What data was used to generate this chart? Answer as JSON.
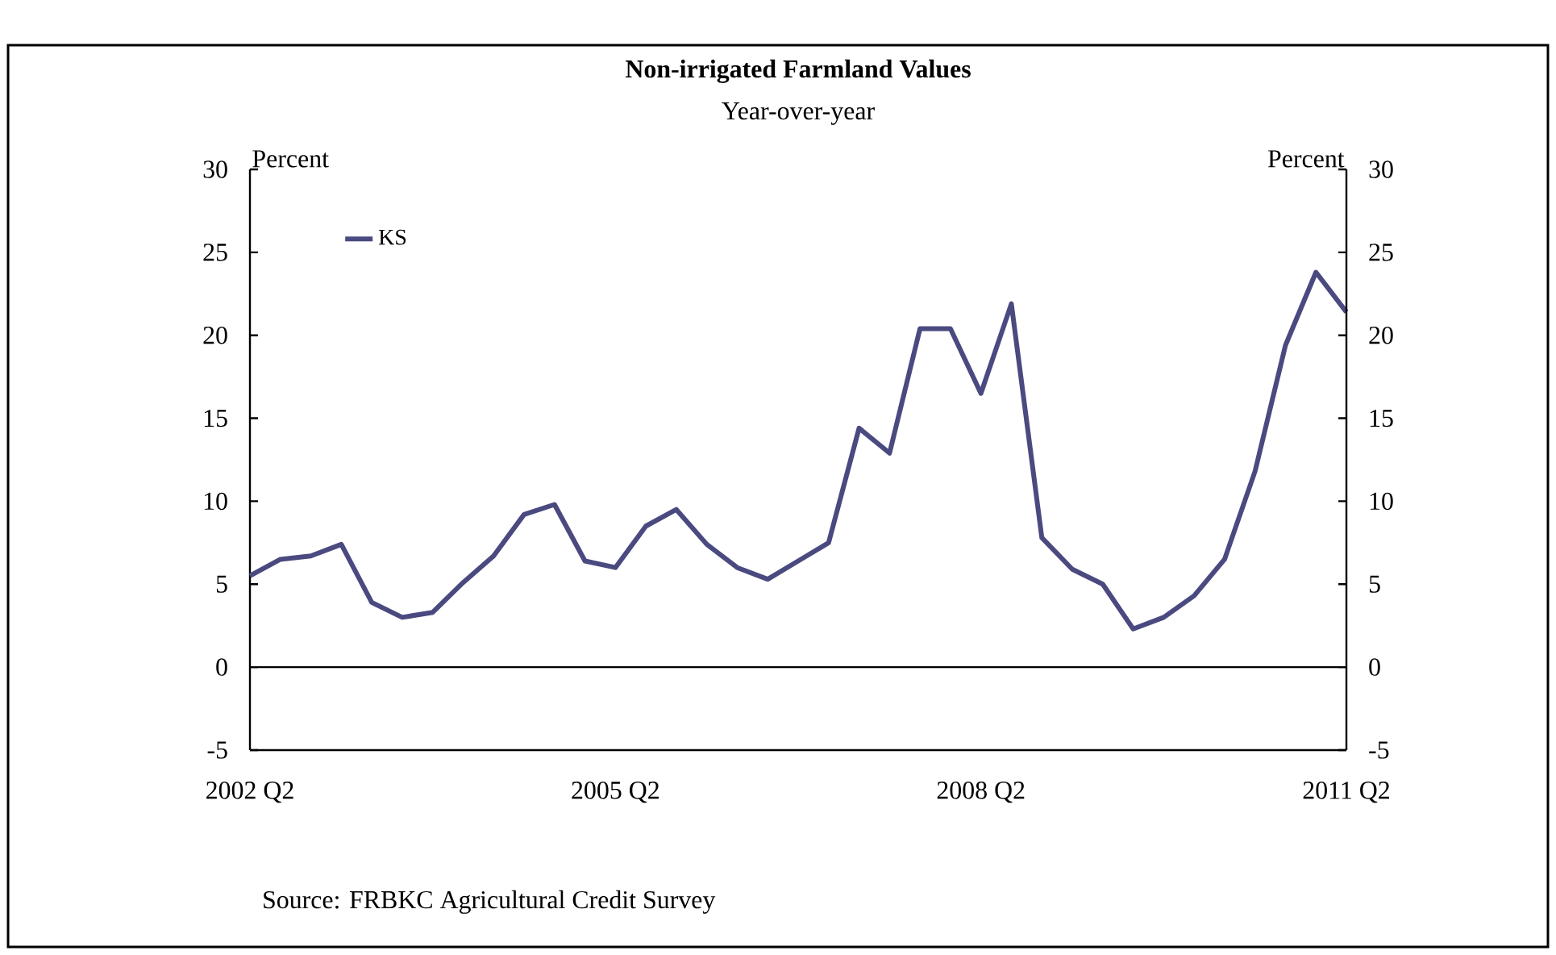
{
  "chart_data": {
    "type": "line",
    "title": "Non-irrigated Farmland Values",
    "subtitle": "Year-over-year",
    "ylabel": "Percent",
    "y2label": "Percent",
    "categories": [
      "2002 Q2",
      null,
      null,
      null,
      null,
      null,
      null,
      null,
      null,
      null,
      null,
      null,
      "2005 Q2",
      null,
      null,
      null,
      null,
      null,
      null,
      null,
      null,
      null,
      null,
      null,
      "2008 Q2",
      null,
      null,
      null,
      null,
      null,
      null,
      null,
      null,
      null,
      null,
      null,
      "2011 Q2"
    ],
    "series": [
      {
        "name": "KS",
        "color": "#4a4a80",
        "values": [
          5.5,
          6.5,
          6.7,
          7.4,
          3.9,
          3.0,
          3.3,
          5.1,
          6.7,
          9.2,
          9.8,
          6.4,
          6.0,
          8.5,
          9.5,
          7.4,
          6.0,
          5.3,
          6.4,
          7.5,
          14.4,
          12.9,
          20.4,
          20.4,
          16.5,
          21.9,
          7.8,
          5.9,
          5.0,
          2.3,
          3.0,
          4.3,
          6.5,
          11.8,
          19.4,
          23.8,
          21.4
        ]
      }
    ],
    "ylim": [
      -5,
      30
    ],
    "yticks": [
      -5,
      0,
      5,
      10,
      15,
      20,
      25,
      30
    ],
    "y2lim": [
      -5,
      30
    ],
    "y2ticks": [
      -5,
      0,
      5,
      10,
      15,
      20,
      25,
      30
    ],
    "ref_lines": [
      {
        "axis": "y",
        "value": 0,
        "color": "#000000"
      }
    ],
    "legend": "top left",
    "grid": false,
    "marker": "none",
    "line_style": "solid",
    "annotations": [
      "Source: FRBKC Agricultural Credit Survey"
    ]
  }
}
